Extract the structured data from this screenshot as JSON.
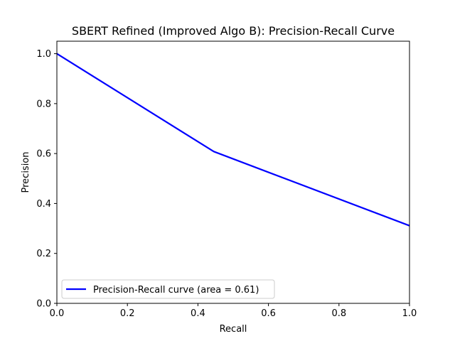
{
  "chart_data": {
    "type": "line",
    "title": "SBERT Refined (Improved Algo B): Precision-Recall Curve",
    "xlabel": "Recall",
    "ylabel": "Precision",
    "xlim": [
      0.0,
      1.0
    ],
    "ylim": [
      0.0,
      1.05
    ],
    "xticks": [
      "0.0",
      "0.2",
      "0.4",
      "0.6",
      "0.8",
      "1.0"
    ],
    "yticks": [
      "0.0",
      "0.2",
      "0.4",
      "0.6",
      "0.8",
      "1.0"
    ],
    "grid": false,
    "legend_position": "lower-left",
    "series": [
      {
        "name": "Precision-Recall curve (area = 0.61)",
        "color": "#0000ff",
        "x": [
          0.0,
          0.445,
          1.0
        ],
        "y": [
          1.0,
          0.608,
          0.311
        ]
      }
    ]
  }
}
